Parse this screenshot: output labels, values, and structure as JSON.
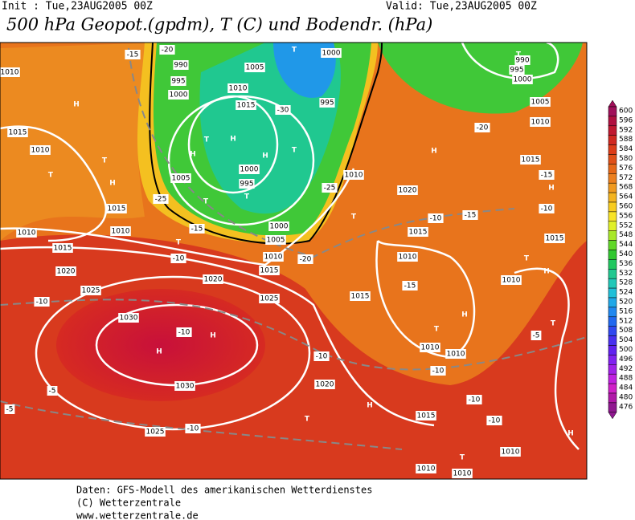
{
  "header": {
    "init": "Init : Tue,23AUG2005 00Z",
    "valid": "Valid: Tue,23AUG2005 00Z",
    "title": "500 hPa Geopot.(gpdm), T (C) und Bodendr. (hPa)"
  },
  "colorbar": {
    "levels": [
      600,
      596,
      592,
      588,
      584,
      580,
      576,
      572,
      568,
      564,
      560,
      556,
      552,
      548,
      544,
      540,
      536,
      532,
      528,
      524,
      520,
      516,
      512,
      508,
      504,
      500,
      496,
      492,
      488,
      484,
      480,
      476
    ],
    "colors": [
      "#a0105a",
      "#b01040",
      "#c01830",
      "#d02820",
      "#dc3c18",
      "#e05018",
      "#e66818",
      "#ec8020",
      "#f09a20",
      "#f4b420",
      "#f8cc20",
      "#f8e428",
      "#e0f028",
      "#a8e828",
      "#60d828",
      "#30c830",
      "#20c860",
      "#20c890",
      "#20c8b8",
      "#20c0d8",
      "#20a8e8",
      "#2088f0",
      "#2068f0",
      "#3048f0",
      "#4830f0",
      "#6020f0",
      "#8020f0",
      "#a020e8",
      "#c020e0",
      "#d020c8",
      "#b018a8",
      "#901890"
    ]
  },
  "map_labels": [
    "1010",
    "H",
    "1015",
    "1010",
    "T",
    "T",
    "H",
    "1015",
    "1010",
    "1010",
    "1015",
    "1020",
    "1025",
    "1030",
    "H",
    "H",
    "1030",
    "1025",
    "T",
    "1020",
    "1025",
    "1010",
    "1015",
    "1005",
    "1000",
    "T",
    "1000",
    "1005",
    "995",
    "990",
    "1000",
    "1010",
    "1015",
    "H",
    "T",
    "H",
    "T",
    "H",
    "1005",
    "1000",
    "995",
    "T",
    "T",
    "995",
    "T",
    "1010",
    "1020",
    "H",
    "1015",
    "1010",
    "1015",
    "1010",
    "T",
    "H",
    "1010",
    "1020",
    "H",
    "T",
    "1015",
    "1010",
    "1010",
    "T",
    "1010",
    "H",
    "T",
    "H",
    "T",
    "1010",
    "1015",
    "H",
    "1015",
    "1010",
    "1005",
    "T",
    "990",
    "995",
    "1000",
    "-15",
    "-20",
    "-30",
    "-25",
    "-15",
    "-10",
    "-10",
    "-10",
    "-10",
    "-15",
    "-10",
    "-10",
    "-10",
    "-5",
    "-5",
    "-5",
    "-10",
    "-20",
    "-20",
    "-15",
    "-10",
    "-15",
    "-10",
    "-25"
  ],
  "footer": [
    "Daten: GFS-Modell des amerikanischen Wetterdienstes",
    "(C) Wetterzentrale",
    "www.wetterzentrale.de"
  ]
}
